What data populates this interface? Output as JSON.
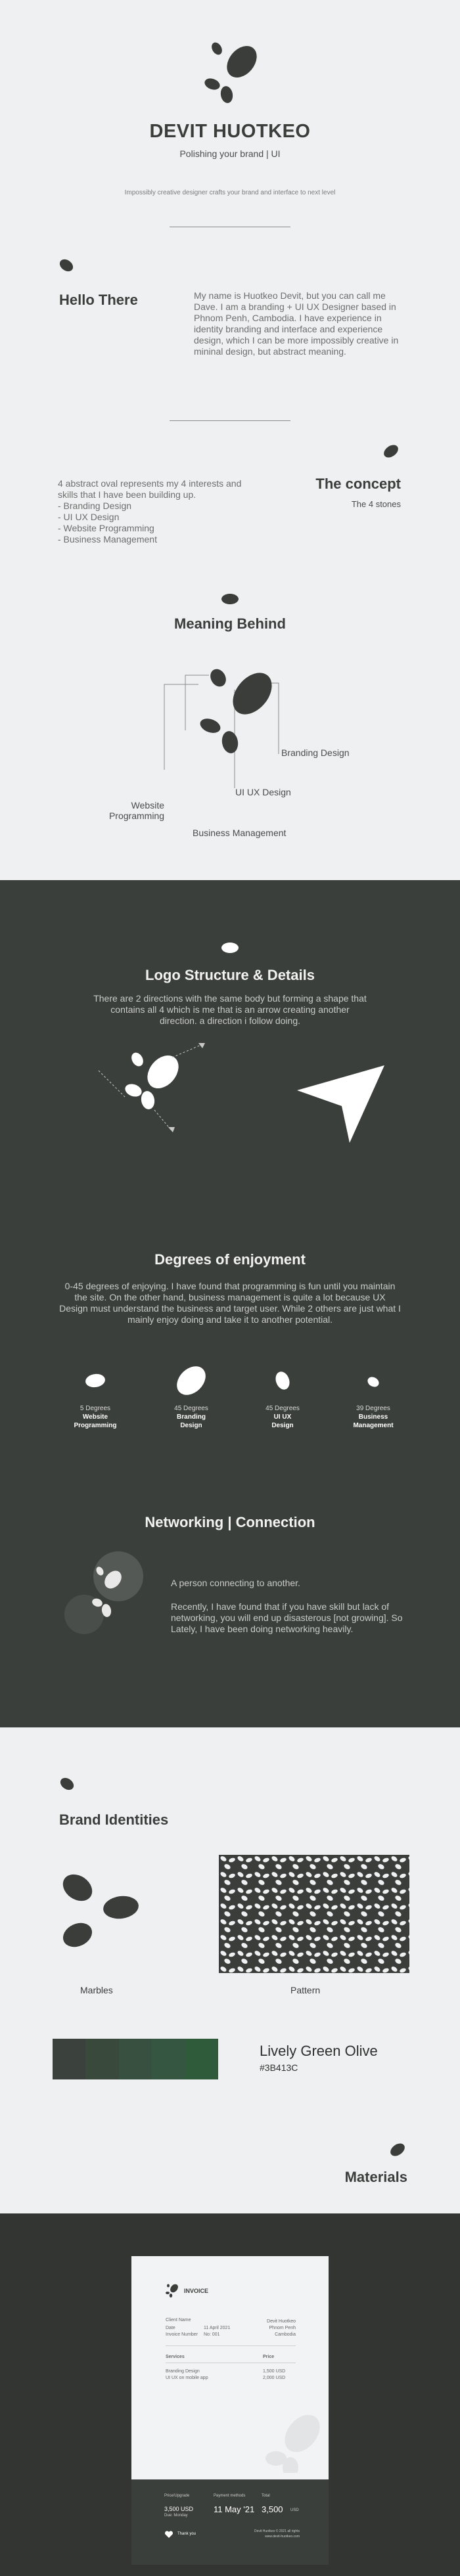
{
  "hero": {
    "name": "DEVIT HUOTKEO",
    "subtitle": "Polishing your brand | UI",
    "tagline": "Impossibly creative designer crafts your brand and interface to next level"
  },
  "hello": {
    "title": "Hello There",
    "body": "My name is Huotkeo Devit, but you can call me Dave. I am a branding + UI UX Designer based in Phnom Penh, Cambodia. I have experience in identity branding and interface and experience design, which I can be more impossibly creative in mininal design, but abstract meaning."
  },
  "concept": {
    "title": "The concept",
    "subtitle": "The 4 stones",
    "intro": "4 abstract oval represents my 4 interests and skills that I have been building up.",
    "items": [
      "- Branding Design",
      "- UI UX Design",
      "- Website Programming",
      "- Business Management"
    ]
  },
  "meaning": {
    "title": "Meaning Behind",
    "labels": {
      "branding": "Branding Design",
      "uiux": "UI UX Design",
      "website": "Website\nProgramming",
      "business": "Business Management"
    }
  },
  "logo_structure": {
    "title": "Logo Structure & Details",
    "body": "There are 2 directions with the same body but forming a shape that contains all 4 which is me that is an arrow creating another direction. a direction i follow doing."
  },
  "enjoyment": {
    "title": "Degrees of enjoyment",
    "body": "0-45 degrees of enjoying. I have found that programming is fun until you maintain the site. On the other hand, business management is quite a lot because UX Design must understand the business and target user. While 2 others are just what I mainly enjoy doing and take it to another potential.",
    "items": [
      {
        "degrees": "5 Degrees",
        "name": "Website",
        "name2": "Programming",
        "rotation": 5
      },
      {
        "degrees": "45 Degrees",
        "name": "Branding",
        "name2": "Design",
        "rotation": 45
      },
      {
        "degrees": "45 Degrees",
        "name": "UI UX",
        "name2": "Design",
        "rotation": 45
      },
      {
        "degrees": "39 Degrees",
        "name": "Business",
        "name2": "Management",
        "rotation": 39
      }
    ]
  },
  "networking": {
    "title": "Networking | Connection",
    "p1": "A person connecting to another.",
    "p2": "Recently, I have found that if you have skill but lack of networking, you will end up disasterous [not growing]. So Lately, I have been doing networking heavily."
  },
  "brand": {
    "title": "Brand Identities",
    "marbles": "Marbles",
    "pattern": "Pattern",
    "color_name": "Lively Green Olive",
    "color_hex": "#3B413C",
    "swatches": [
      "#3b413c",
      "#394a3d",
      "#37503f",
      "#355641",
      "#2f5b3a"
    ]
  },
  "materials": {
    "title": "Materials",
    "invoice": {
      "heading": "INVOICE",
      "client_label": "Client Name",
      "date_label": "Date",
      "date_value": "11 April 2021",
      "invoice_label": "Invoice Number",
      "invoice_value": "No: 001",
      "company_line1": "Devit Huotkeo",
      "company_line2": "Phnom Penh",
      "company_line3": "Cambodia",
      "services_label": "Services",
      "price_label": "Price",
      "service1": "Branding Design",
      "service2": "UI UX on mobile app",
      "price1": "1,500 USD",
      "price2": "2,000 USD",
      "footer_label1": "Price/Upgrade",
      "footer_label2": "Payment methods",
      "footer_label3": "Total",
      "footer_value1": "3,500 USD",
      "footer_value1_sub": "Due: Monday",
      "footer_value2": "11 May '21",
      "footer_value3": "3,500",
      "footer_value3_unit": "USD",
      "thanks": "Thank you",
      "footer_note1": "Devit Huotkeo © 2021 all rights",
      "footer_note2": "www.devit-huotkeo.com"
    }
  },
  "colors": {
    "dark": "#3b3f3b",
    "darker": "#333533",
    "light": "#eff0f2",
    "ink": "#3b3d3b"
  }
}
